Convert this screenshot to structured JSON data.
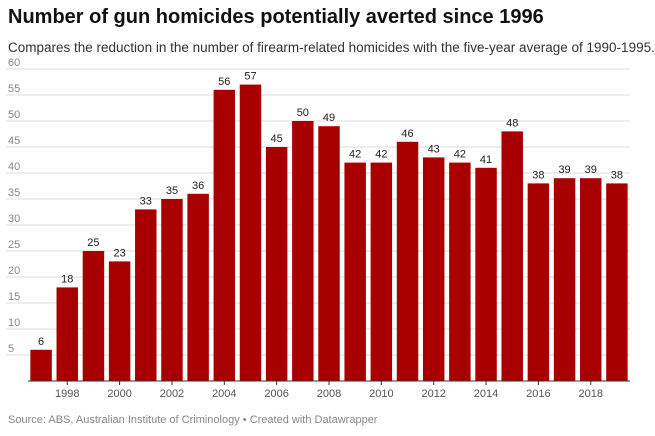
{
  "header": {
    "title": "Number of gun homicides potentially averted since 1996",
    "subtitle": "Compares the reduction in the number of firearm-related homicides with the five-year average of 1990-1995."
  },
  "footer": {
    "source": "Source: ABS, Australian Institute of Criminology • Created with Datawrapper"
  },
  "colors": {
    "bar": "#a80000",
    "grid": "#dddddd"
  },
  "chart_data": {
    "type": "bar",
    "title": "Number of gun homicides potentially averted since 1996",
    "categories": [
      1997,
      1998,
      1999,
      2000,
      2001,
      2002,
      2003,
      2004,
      2005,
      2006,
      2007,
      2008,
      2009,
      2010,
      2011,
      2012,
      2013,
      2014,
      2015,
      2016,
      2017,
      2018,
      2019
    ],
    "values": [
      6,
      18,
      25,
      23,
      33,
      35,
      36,
      56,
      57,
      45,
      50,
      49,
      42,
      42,
      46,
      43,
      42,
      41,
      48,
      38,
      39,
      39,
      38
    ],
    "x_tick_labels": [
      "1998",
      "2000",
      "2002",
      "2004",
      "2006",
      "2008",
      "2010",
      "2012",
      "2014",
      "2016",
      "2018"
    ],
    "y_ticks": [
      5,
      10,
      15,
      20,
      25,
      30,
      35,
      40,
      45,
      50,
      55,
      60
    ],
    "ylim": [
      0,
      60
    ],
    "grid": true,
    "data_labels": true,
    "xlabel": "",
    "ylabel": ""
  }
}
